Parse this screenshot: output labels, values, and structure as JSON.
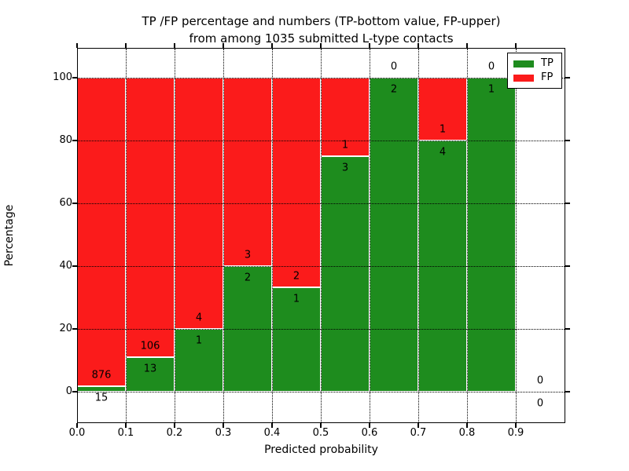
{
  "figure": {
    "title_line1": "TP /FP percentage and numbers (TP-bottom value, FP-upper)",
    "title_line2": "from among 1035 submitted L-type contacts"
  },
  "chart_data": {
    "type": "bar",
    "stacked": true,
    "title": "TP /FP percentage and numbers (TP-bottom value, FP-upper) from among 1035 submitted L-type contacts",
    "xlabel": "Predicted probability",
    "ylabel": "Percentage",
    "xlim": [
      0.0,
      1.0
    ],
    "ylim": [
      -10,
      110
    ],
    "grid": true,
    "grid_style": "dotted",
    "legend_position": "upper right",
    "total_submitted": 1035,
    "colors": {
      "tp": "#1e8c1e",
      "fp": "#fb1b1b"
    },
    "legend": [
      {
        "label": "TP",
        "key": "tp"
      },
      {
        "label": "FP",
        "key": "fp"
      }
    ],
    "xticks": [
      "0.0",
      "0.1",
      "0.2",
      "0.3",
      "0.4",
      "0.5",
      "0.6",
      "0.7",
      "0.8",
      "0.9"
    ],
    "yticks": [
      "0",
      "20",
      "40",
      "60",
      "80",
      "100"
    ],
    "bins": [
      {
        "x0": 0.0,
        "x1": 0.1,
        "tp": 15,
        "fp": 876,
        "tp_pct": 1.68
      },
      {
        "x0": 0.1,
        "x1": 0.2,
        "tp": 13,
        "fp": 106,
        "tp_pct": 10.92
      },
      {
        "x0": 0.2,
        "x1": 0.3,
        "tp": 1,
        "fp": 4,
        "tp_pct": 20.0
      },
      {
        "x0": 0.3,
        "x1": 0.4,
        "tp": 2,
        "fp": 3,
        "tp_pct": 40.0
      },
      {
        "x0": 0.4,
        "x1": 0.5,
        "tp": 1,
        "fp": 2,
        "tp_pct": 33.33
      },
      {
        "x0": 0.5,
        "x1": 0.6,
        "tp": 3,
        "fp": 1,
        "tp_pct": 75.0
      },
      {
        "x0": 0.6,
        "x1": 0.7,
        "tp": 2,
        "fp": 0,
        "tp_pct": 100.0
      },
      {
        "x0": 0.7,
        "x1": 0.8,
        "tp": 4,
        "fp": 1,
        "tp_pct": 80.0
      },
      {
        "x0": 0.8,
        "x1": 0.9,
        "tp": 1,
        "fp": 0,
        "tp_pct": 100.0
      },
      {
        "x0": 0.9,
        "x1": 1.0,
        "tp": 0,
        "fp": 0,
        "tp_pct": 0.0
      }
    ]
  }
}
